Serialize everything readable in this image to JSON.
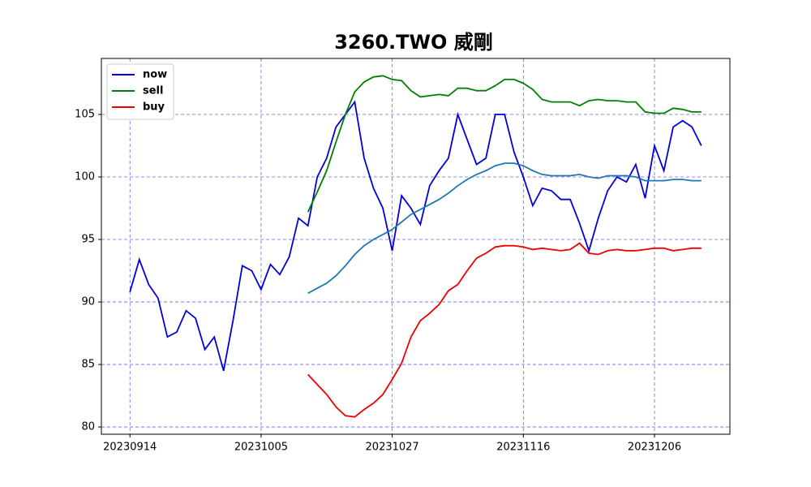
{
  "chart_data": {
    "type": "line",
    "title": "3260.TWO 威剛",
    "categories": [
      "20230914",
      null,
      null,
      null,
      null,
      null,
      null,
      null,
      null,
      null,
      null,
      null,
      null,
      null,
      "20231005",
      null,
      null,
      null,
      null,
      null,
      null,
      null,
      null,
      null,
      null,
      null,
      null,
      null,
      "20231027",
      null,
      null,
      null,
      null,
      null,
      null,
      null,
      null,
      null,
      null,
      null,
      null,
      null,
      "20231116",
      null,
      null,
      null,
      null,
      null,
      null,
      null,
      null,
      null,
      null,
      null,
      null,
      null,
      "20231206",
      null,
      null,
      null,
      null,
      null
    ],
    "series": [
      {
        "name": "now",
        "color": "#0000dd",
        "values": [
          90.8,
          93.4,
          91.4,
          90.3,
          87.2,
          87.6,
          89.3,
          88.7,
          86.2,
          87.2,
          84.5,
          88.5,
          92.9,
          92.5,
          91.0,
          93.0,
          92.2,
          93.6,
          96.7,
          96.1,
          100.0,
          101.5,
          104.0,
          105.0,
          106.0,
          101.5,
          99.1,
          97.5,
          94.1,
          98.5,
          97.5,
          96.2,
          99.3,
          100.5,
          101.5,
          105.0,
          103.0,
          101.0,
          101.5,
          105.0,
          105.0,
          102.0,
          100.0,
          97.7,
          99.1,
          98.9,
          98.2,
          98.2,
          96.3,
          94.1,
          96.7,
          98.9,
          100.0,
          99.6,
          101.0,
          98.3,
          102.5,
          100.5,
          104.0,
          104.5,
          104.0,
          102.5
        ]
      },
      {
        "name": "sell",
        "color": "#008000",
        "values": [
          null,
          null,
          null,
          null,
          null,
          null,
          null,
          null,
          null,
          null,
          null,
          null,
          null,
          null,
          null,
          null,
          null,
          null,
          null,
          97.2,
          98.8,
          100.5,
          102.8,
          105.0,
          106.8,
          107.6,
          108.0,
          108.1,
          107.8,
          107.7,
          106.9,
          106.4,
          106.5,
          106.6,
          106.5,
          107.1,
          107.1,
          106.9,
          106.9,
          107.3,
          107.8,
          107.8,
          107.5,
          107.0,
          106.2,
          106.0,
          106.0,
          106.0,
          105.7,
          106.1,
          106.2,
          106.1,
          106.1,
          106.0,
          106.0,
          105.2,
          105.1,
          105.1,
          105.5,
          105.4,
          105.2,
          105.2
        ]
      },
      {
        "name": "buy",
        "color": "#ee0000",
        "values": [
          null,
          null,
          null,
          null,
          null,
          null,
          null,
          null,
          null,
          null,
          null,
          null,
          null,
          null,
          null,
          null,
          null,
          null,
          null,
          84.2,
          83.4,
          82.6,
          81.6,
          80.9,
          80.8,
          81.4,
          81.9,
          82.6,
          83.8,
          85.1,
          87.2,
          88.5,
          89.1,
          89.8,
          90.9,
          91.4,
          92.5,
          93.5,
          93.9,
          94.4,
          94.5,
          94.5,
          94.4,
          94.2,
          94.3,
          94.2,
          94.1,
          94.2,
          94.7,
          93.9,
          93.8,
          94.1,
          94.2,
          94.1,
          94.1,
          94.2,
          94.3,
          94.3,
          94.1,
          94.2,
          94.3,
          94.3
        ]
      },
      {
        "color": "#1f77b4",
        "values": [
          null,
          null,
          null,
          null,
          null,
          null,
          null,
          null,
          null,
          null,
          null,
          null,
          null,
          null,
          null,
          null,
          null,
          null,
          null,
          90.7,
          91.1,
          91.5,
          92.1,
          92.9,
          93.8,
          94.5,
          95.0,
          95.4,
          95.8,
          96.4,
          97.0,
          97.4,
          97.8,
          98.2,
          98.7,
          99.3,
          99.8,
          100.2,
          100.5,
          100.9,
          101.1,
          101.1,
          100.9,
          100.5,
          100.2,
          100.1,
          100.1,
          100.1,
          100.2,
          100.0,
          99.9,
          100.1,
          100.1,
          100.1,
          100.0,
          99.7,
          99.7,
          99.7,
          99.8,
          99.8,
          99.7,
          99.7
        ]
      }
    ],
    "ylim": [
      79.42,
      109.48
    ],
    "yticks": [
      80,
      85,
      90,
      95,
      100,
      105
    ],
    "grid": true,
    "legend": "upper left"
  }
}
